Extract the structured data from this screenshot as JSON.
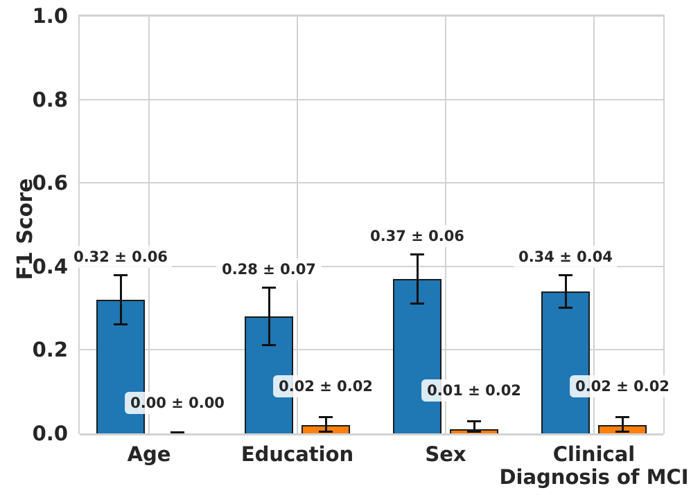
{
  "chart_data": {
    "type": "bar",
    "title": "",
    "xlabel": "",
    "ylabel": "F1 Score",
    "ylim": [
      0.0,
      1.0
    ],
    "yticks": [
      0.0,
      0.2,
      0.4,
      0.6,
      0.8,
      1.0
    ],
    "ytick_labels": [
      "0.0",
      "0.2",
      "0.4",
      "0.6",
      "0.8",
      "1.0"
    ],
    "grid": true,
    "legend": null,
    "categories": [
      "Age",
      "Education",
      "Sex",
      "Clinical\nDiagnosis of MCI"
    ],
    "series": [
      {
        "name": "series_1",
        "color": "#1f77b4",
        "values": [
          0.32,
          0.28,
          0.37,
          0.34
        ],
        "errors": [
          0.06,
          0.07,
          0.06,
          0.04
        ],
        "labels": [
          "0.32 ± 0.06",
          "0.28 ± 0.07",
          "0.37 ± 0.06",
          "0.34 ± 0.04"
        ]
      },
      {
        "name": "series_2",
        "color": "#ff7f0e",
        "values": [
          0.0,
          0.02,
          0.01,
          0.02
        ],
        "errors": [
          0.0,
          0.02,
          0.02,
          0.02
        ],
        "labels": [
          "0.00 ± 0.00",
          "0.02 ± 0.02",
          "0.01 ± 0.02",
          "0.02 ± 0.02"
        ]
      }
    ],
    "colors": {
      "bar_blue": "#1f77b4",
      "bar_orange": "#ff7f0e",
      "bar_edge": "#1b1b1b",
      "error_bar": "#111111",
      "grid": "#d2d2d2",
      "text": "#262626",
      "annotation_bg": "#ffffff",
      "background": "#ffffff"
    }
  }
}
